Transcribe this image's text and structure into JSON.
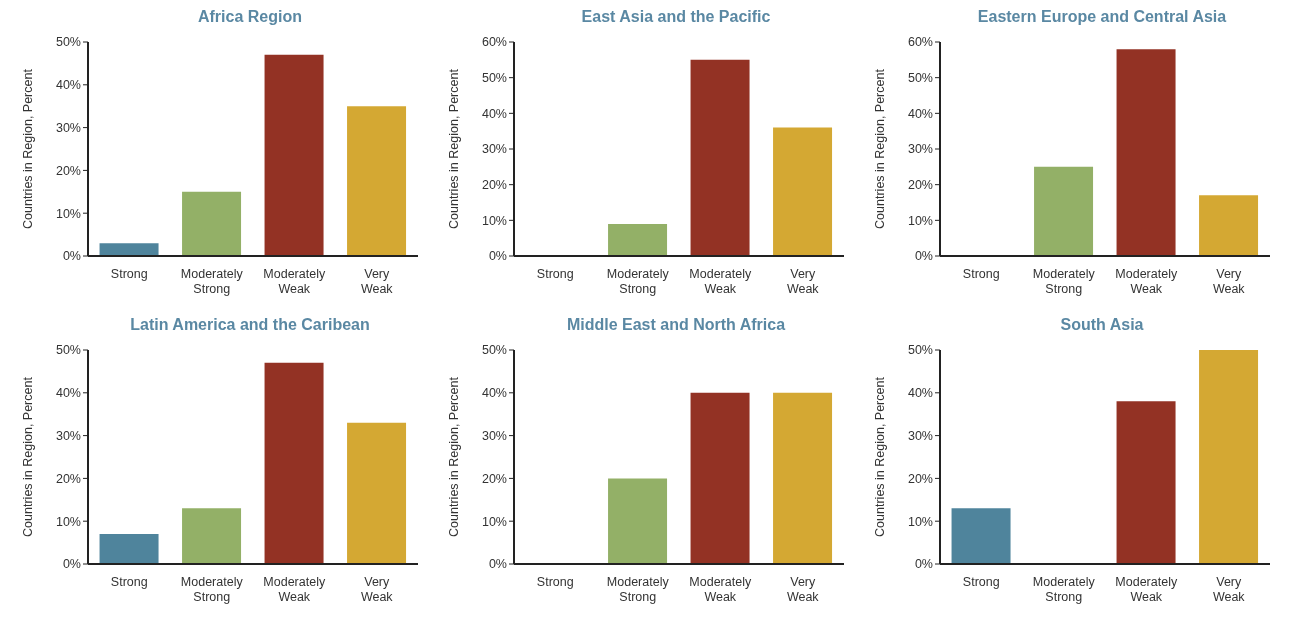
{
  "chart_data": [
    {
      "type": "bar",
      "title": "Africa Region",
      "ylabel": "Countries in Region, Percent",
      "categories": [
        "Strong",
        "Moderately Strong",
        "Moderately Weak",
        "Very Weak"
      ],
      "values": [
        3,
        15,
        47,
        35
      ],
      "colors": [
        "#4f849c",
        "#93b067",
        "#933224",
        "#d4a833"
      ],
      "ylim": [
        0,
        50
      ],
      "yticks": [
        {
          "value": 0,
          "label": "0%"
        },
        {
          "value": 10,
          "label": "10%"
        },
        {
          "value": 20,
          "label": "20%"
        },
        {
          "value": 30,
          "label": "30%"
        },
        {
          "value": 40,
          "label": "40%"
        },
        {
          "value": 50,
          "label": "50%"
        }
      ],
      "grid": false,
      "legend": false
    },
    {
      "type": "bar",
      "title": "East Asia and the Pacific",
      "ylabel": "Countries in Region, Percent",
      "categories": [
        "Strong",
        "Moderately Strong",
        "Moderately Weak",
        "Very Weak"
      ],
      "values": [
        0,
        9,
        55,
        36
      ],
      "colors": [
        "#4f849c",
        "#93b067",
        "#933224",
        "#d4a833"
      ],
      "ylim": [
        0,
        60
      ],
      "yticks": [
        {
          "value": 0,
          "label": "0%"
        },
        {
          "value": 10,
          "label": "10%"
        },
        {
          "value": 20,
          "label": "20%"
        },
        {
          "value": 30,
          "label": "30%"
        },
        {
          "value": 40,
          "label": "40%"
        },
        {
          "value": 50,
          "label": "50%"
        },
        {
          "value": 60,
          "label": "60%"
        }
      ],
      "grid": false,
      "legend": false
    },
    {
      "type": "bar",
      "title": "Eastern Europe and Central Asia",
      "ylabel": "Countries in Region, Percent",
      "categories": [
        "Strong",
        "Moderately Strong",
        "Moderately Weak",
        "Very Weak"
      ],
      "values": [
        0,
        25,
        58,
        17
      ],
      "colors": [
        "#4f849c",
        "#93b067",
        "#933224",
        "#d4a833"
      ],
      "ylim": [
        0,
        60
      ],
      "yticks": [
        {
          "value": 0,
          "label": "0%"
        },
        {
          "value": 10,
          "label": "10%"
        },
        {
          "value": 20,
          "label": "20%"
        },
        {
          "value": 30,
          "label": "30%"
        },
        {
          "value": 40,
          "label": "40%"
        },
        {
          "value": 50,
          "label": "50%"
        },
        {
          "value": 60,
          "label": "60%"
        }
      ],
      "grid": false,
      "legend": false
    },
    {
      "type": "bar",
      "title": "Latin America and the Caribean",
      "ylabel": "Countries in Region, Percent",
      "categories": [
        "Strong",
        "Moderately Strong",
        "Moderately Weak",
        "Very Weak"
      ],
      "values": [
        7,
        13,
        47,
        33
      ],
      "colors": [
        "#4f849c",
        "#93b067",
        "#933224",
        "#d4a833"
      ],
      "ylim": [
        0,
        50
      ],
      "yticks": [
        {
          "value": 0,
          "label": "0%"
        },
        {
          "value": 10,
          "label": "10%"
        },
        {
          "value": 20,
          "label": "20%"
        },
        {
          "value": 30,
          "label": "30%"
        },
        {
          "value": 40,
          "label": "40%"
        },
        {
          "value": 50,
          "label": "50%"
        }
      ],
      "grid": false,
      "legend": false
    },
    {
      "type": "bar",
      "title": "Middle East and North Africa",
      "ylabel": "Countries in Region, Percent",
      "categories": [
        "Strong",
        "Moderately Strong",
        "Moderately Weak",
        "Very Weak"
      ],
      "values": [
        0,
        20,
        40,
        40
      ],
      "colors": [
        "#4f849c",
        "#93b067",
        "#933224",
        "#d4a833"
      ],
      "ylim": [
        0,
        50
      ],
      "yticks": [
        {
          "value": 0,
          "label": "0%"
        },
        {
          "value": 10,
          "label": "10%"
        },
        {
          "value": 20,
          "label": "20%"
        },
        {
          "value": 30,
          "label": "30%"
        },
        {
          "value": 40,
          "label": "40%"
        },
        {
          "value": 50,
          "label": "50%"
        }
      ],
      "grid": false,
      "legend": false
    },
    {
      "type": "bar",
      "title": "South Asia",
      "ylabel": "Countries in Region, Percent",
      "categories": [
        "Strong",
        "Moderately Strong",
        "Moderately Weak",
        "Very Weak"
      ],
      "values": [
        13,
        0,
        38,
        50
      ],
      "colors": [
        "#4f849c",
        "#93b067",
        "#933224",
        "#d4a833"
      ],
      "ylim": [
        0,
        50
      ],
      "yticks": [
        {
          "value": 0,
          "label": "0%"
        },
        {
          "value": 10,
          "label": "10%"
        },
        {
          "value": 20,
          "label": "20%"
        },
        {
          "value": 30,
          "label": "30%"
        },
        {
          "value": 40,
          "label": "40%"
        },
        {
          "value": 50,
          "label": "50%"
        }
      ],
      "grid": false,
      "legend": false
    }
  ]
}
